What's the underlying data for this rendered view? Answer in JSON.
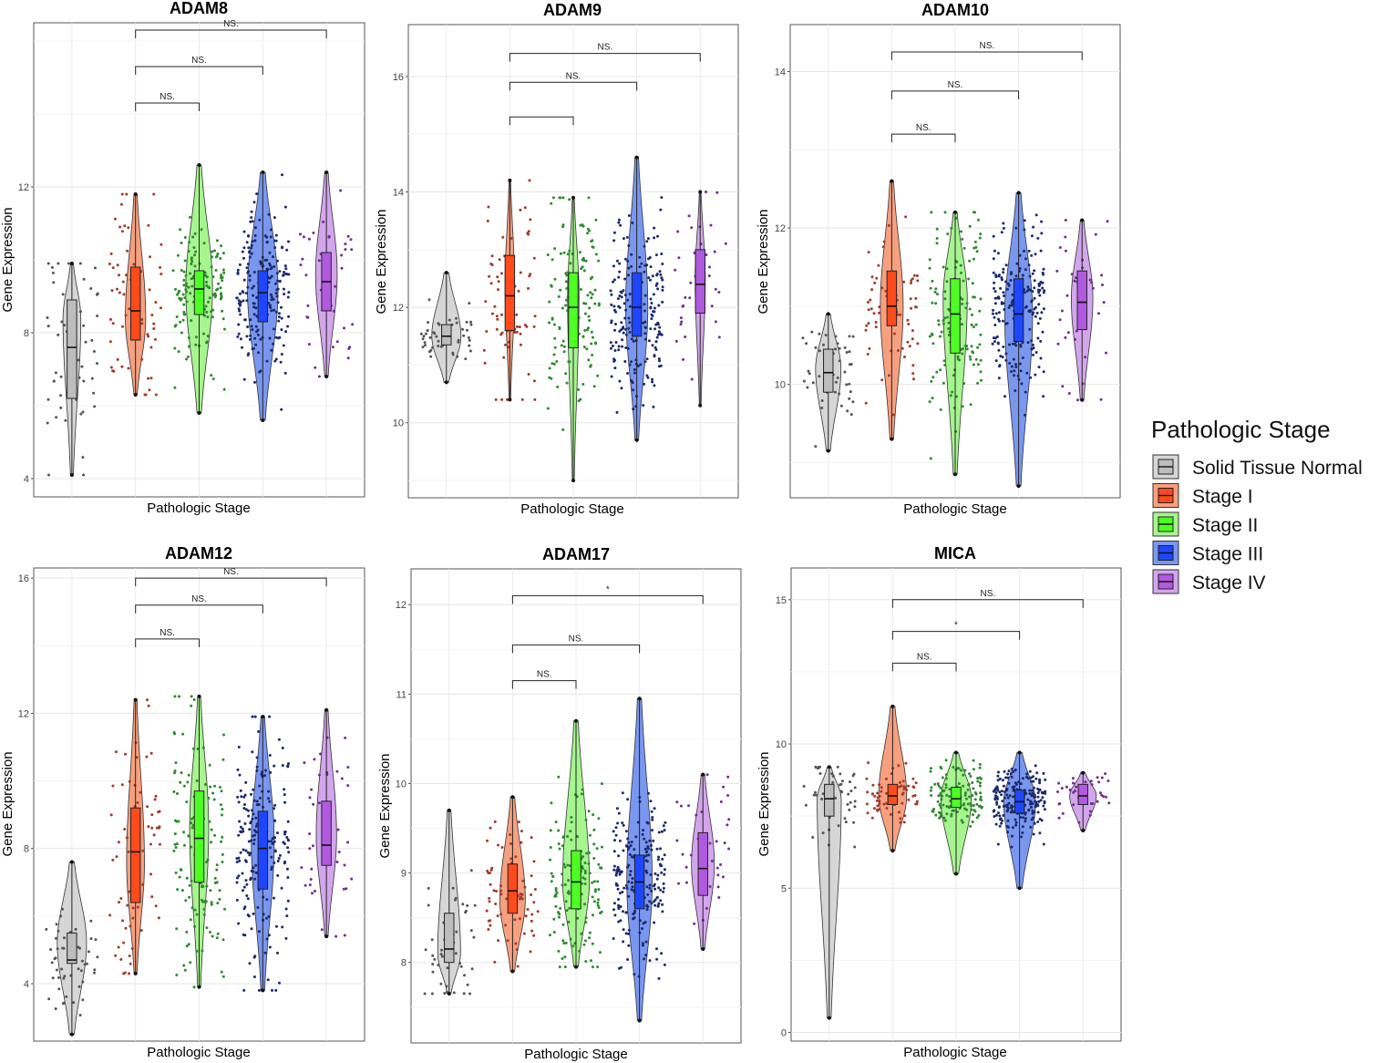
{
  "chart_data": [
    {
      "type": "violin",
      "title": "ADAM8",
      "xlabel": "Pathologic Stage",
      "ylabel": "Gene Expression",
      "ylim": [
        3.5,
        16.5
      ],
      "yticks": [
        4,
        8,
        12
      ],
      "categories": [
        "Solid Tissue Normal",
        "Stage I",
        "Stage II",
        "Stage III",
        "Stage IV"
      ],
      "groups": [
        {
          "min": 4.1,
          "q1": 6.2,
          "median": 7.6,
          "q3": 8.9,
          "max": 9.9,
          "mode": 8.4,
          "width": 0.28,
          "n": 50
        },
        {
          "min": 6.3,
          "q1": 7.8,
          "median": 8.6,
          "q3": 9.8,
          "max": 11.8,
          "mode": 8.4,
          "width": 0.32,
          "n": 70
        },
        {
          "min": 5.8,
          "q1": 8.5,
          "median": 9.2,
          "q3": 9.7,
          "max": 12.6,
          "mode": 9.2,
          "width": 0.42,
          "n": 140
        },
        {
          "min": 5.6,
          "q1": 8.3,
          "median": 9.1,
          "q3": 9.7,
          "max": 12.4,
          "mode": 9.2,
          "width": 0.48,
          "n": 210
        },
        {
          "min": 6.8,
          "q1": 8.6,
          "median": 9.4,
          "q3": 10.2,
          "max": 12.4,
          "mode": 9.6,
          "width": 0.34,
          "n": 40
        }
      ],
      "comparisons": [
        {
          "from": 1,
          "to": 2,
          "y": 14.3,
          "label": "NS."
        },
        {
          "from": 1,
          "to": 3,
          "y": 15.3,
          "label": "NS."
        },
        {
          "from": 1,
          "to": 4,
          "y": 16.3,
          "label": "NS."
        }
      ]
    },
    {
      "type": "violin",
      "title": "ADAM9",
      "xlabel": "Pathologic Stage",
      "ylabel": "Gene Expression",
      "ylim": [
        8.7,
        16.9
      ],
      "yticks": [
        10,
        12,
        14,
        16
      ],
      "categories": [
        "Solid Tissue Normal",
        "Stage I",
        "Stage II",
        "Stage III",
        "Stage IV"
      ],
      "groups": [
        {
          "min": 10.7,
          "q1": 11.35,
          "median": 11.5,
          "q3": 11.7,
          "max": 12.6,
          "mode": 11.5,
          "width": 0.46,
          "n": 50
        },
        {
          "min": 10.4,
          "q1": 11.6,
          "median": 12.2,
          "q3": 12.9,
          "max": 14.2,
          "mode": 12.4,
          "width": 0.15,
          "n": 70
        },
        {
          "min": 9.0,
          "q1": 11.3,
          "median": 12.0,
          "q3": 12.6,
          "max": 13.9,
          "mode": 12.2,
          "width": 0.18,
          "n": 140
        },
        {
          "min": 9.7,
          "q1": 11.5,
          "median": 12.0,
          "q3": 12.6,
          "max": 14.6,
          "mode": 12.0,
          "width": 0.35,
          "n": 210
        },
        {
          "min": 10.3,
          "q1": 11.9,
          "median": 12.4,
          "q3": 13.0,
          "max": 14.0,
          "mode": 12.5,
          "width": 0.16,
          "n": 40
        }
      ],
      "comparisons": [
        {
          "from": 1,
          "to": 2,
          "y": 15.3,
          "label": ""
        },
        {
          "from": 1,
          "to": 3,
          "y": 15.9,
          "label": "NS."
        },
        {
          "from": 1,
          "to": 4,
          "y": 16.4,
          "label": "NS."
        }
      ]
    },
    {
      "type": "violin",
      "title": "ADAM10",
      "xlabel": "Pathologic Stage",
      "ylabel": "Gene Expression",
      "ylim": [
        8.55,
        14.6
      ],
      "yticks": [
        10,
        12,
        14
      ],
      "categories": [
        "Solid Tissue Normal",
        "Stage I",
        "Stage II",
        "Stage III",
        "Stage IV"
      ],
      "groups": [
        {
          "min": 9.15,
          "q1": 9.9,
          "median": 10.15,
          "q3": 10.45,
          "max": 10.9,
          "mode": 10.2,
          "width": 0.4,
          "n": 50
        },
        {
          "min": 9.3,
          "q1": 10.75,
          "median": 11.0,
          "q3": 11.45,
          "max": 12.6,
          "mode": 11.0,
          "width": 0.36,
          "n": 70
        },
        {
          "min": 8.85,
          "q1": 10.4,
          "median": 10.9,
          "q3": 11.35,
          "max": 12.2,
          "mode": 11.1,
          "width": 0.38,
          "n": 140
        },
        {
          "min": 8.7,
          "q1": 10.55,
          "median": 10.9,
          "q3": 11.35,
          "max": 12.45,
          "mode": 10.9,
          "width": 0.44,
          "n": 210
        },
        {
          "min": 9.8,
          "q1": 10.7,
          "median": 11.05,
          "q3": 11.45,
          "max": 12.1,
          "mode": 11.1,
          "width": 0.34,
          "n": 40
        }
      ],
      "comparisons": [
        {
          "from": 1,
          "to": 2,
          "y": 13.2,
          "label": "NS."
        },
        {
          "from": 1,
          "to": 3,
          "y": 13.75,
          "label": "NS."
        },
        {
          "from": 1,
          "to": 4,
          "y": 14.25,
          "label": "NS."
        }
      ]
    },
    {
      "type": "violin",
      "title": "ADAM12",
      "xlabel": "Pathologic Stage",
      "ylabel": "Gene Expression",
      "ylim": [
        2.3,
        16.3
      ],
      "yticks": [
        4,
        8,
        12,
        16
      ],
      "categories": [
        "Solid Tissue Normal",
        "Stage I",
        "Stage II",
        "Stage III",
        "Stage IV"
      ],
      "groups": [
        {
          "min": 2.5,
          "q1": 4.6,
          "median": 4.7,
          "q3": 5.5,
          "max": 7.6,
          "mode": 5.2,
          "width": 0.46,
          "n": 50
        },
        {
          "min": 4.3,
          "q1": 6.4,
          "median": 7.9,
          "q3": 9.2,
          "max": 12.4,
          "mode": 7.6,
          "width": 0.28,
          "n": 70
        },
        {
          "min": 3.9,
          "q1": 7.0,
          "median": 8.3,
          "q3": 9.7,
          "max": 12.5,
          "mode": 8.6,
          "width": 0.3,
          "n": 140
        },
        {
          "min": 3.8,
          "q1": 6.8,
          "median": 8.0,
          "q3": 9.1,
          "max": 11.9,
          "mode": 8.2,
          "width": 0.36,
          "n": 210
        },
        {
          "min": 5.4,
          "q1": 7.5,
          "median": 8.1,
          "q3": 9.4,
          "max": 12.1,
          "mode": 8.4,
          "width": 0.32,
          "n": 40
        }
      ],
      "comparisons": [
        {
          "from": 1,
          "to": 2,
          "y": 14.2,
          "label": "NS."
        },
        {
          "from": 1,
          "to": 3,
          "y": 15.2,
          "label": "NS."
        },
        {
          "from": 1,
          "to": 4,
          "y": 16.0,
          "label": "NS."
        }
      ]
    },
    {
      "type": "violin",
      "title": "ADAM17",
      "xlabel": "Pathologic Stage",
      "ylabel": "Gene Expression",
      "ylim": [
        7.1,
        12.4
      ],
      "yticks": [
        8,
        9,
        10,
        11,
        12
      ],
      "categories": [
        "Solid Tissue Normal",
        "Stage I",
        "Stage II",
        "Stage III",
        "Stage IV"
      ],
      "groups": [
        {
          "min": 7.65,
          "q1": 8.0,
          "median": 8.15,
          "q3": 8.55,
          "max": 9.7,
          "mode": 8.1,
          "width": 0.36,
          "n": 50
        },
        {
          "min": 7.9,
          "q1": 8.55,
          "median": 8.8,
          "q3": 9.1,
          "max": 9.85,
          "mode": 8.7,
          "width": 0.4,
          "n": 70
        },
        {
          "min": 7.95,
          "q1": 8.6,
          "median": 8.9,
          "q3": 9.25,
          "max": 10.7,
          "mode": 8.9,
          "width": 0.42,
          "n": 140
        },
        {
          "min": 7.35,
          "q1": 8.6,
          "median": 8.9,
          "q3": 9.2,
          "max": 10.95,
          "mode": 8.9,
          "width": 0.4,
          "n": 210
        },
        {
          "min": 8.15,
          "q1": 8.75,
          "median": 9.05,
          "q3": 9.45,
          "max": 10.1,
          "mode": 9.1,
          "width": 0.36,
          "n": 40
        }
      ],
      "comparisons": [
        {
          "from": 1,
          "to": 2,
          "y": 11.15,
          "label": "NS."
        },
        {
          "from": 1,
          "to": 3,
          "y": 11.55,
          "label": "NS."
        },
        {
          "from": 1,
          "to": 4,
          "y": 12.1,
          "label": "*"
        }
      ]
    },
    {
      "type": "violin",
      "title": "MICA",
      "xlabel": "Pathologic Stage",
      "ylabel": "Gene Expression",
      "ylim": [
        -0.3,
        16.1
      ],
      "yticks": [
        0,
        5,
        10,
        15
      ],
      "categories": [
        "Solid Tissue Normal",
        "Stage I",
        "Stage II",
        "Stage III",
        "Stage IV"
      ],
      "groups": [
        {
          "min": 0.5,
          "q1": 7.5,
          "median": 8.1,
          "q3": 8.6,
          "max": 9.2,
          "mode": 8.1,
          "width": 0.38,
          "n": 50
        },
        {
          "min": 6.3,
          "q1": 7.9,
          "median": 8.2,
          "q3": 8.6,
          "max": 11.3,
          "mode": 8.2,
          "width": 0.44,
          "n": 70
        },
        {
          "min": 5.5,
          "q1": 7.8,
          "median": 8.1,
          "q3": 8.5,
          "max": 9.7,
          "mode": 8.1,
          "width": 0.48,
          "n": 140
        },
        {
          "min": 5.0,
          "q1": 7.6,
          "median": 8.0,
          "q3": 8.4,
          "max": 9.7,
          "mode": 8.0,
          "width": 0.5,
          "n": 210
        },
        {
          "min": 7.0,
          "q1": 7.9,
          "median": 8.2,
          "q3": 8.6,
          "max": 9.0,
          "mode": 8.2,
          "width": 0.42,
          "n": 40
        }
      ],
      "comparisons": [
        {
          "from": 1,
          "to": 2,
          "y": 12.8,
          "label": "NS."
        },
        {
          "from": 1,
          "to": 3,
          "y": 13.9,
          "label": "*"
        },
        {
          "from": 1,
          "to": 4,
          "y": 15.0,
          "label": "NS."
        }
      ]
    }
  ],
  "legend": {
    "title": "Pathologic Stage",
    "items": [
      {
        "label": "Solid Tissue Normal",
        "fill": "#d6d6d6",
        "box": "#bdbdbd",
        "point": "#555555"
      },
      {
        "label": "Stage I",
        "fill": "#f7a07f",
        "box": "#ff4a1c",
        "point": "#a33a2a"
      },
      {
        "label": "Stage II",
        "fill": "#a6f58f",
        "box": "#4dff23",
        "point": "#2e8a2e"
      },
      {
        "label": "Stage III",
        "fill": "#7a97f0",
        "box": "#1f46ff",
        "point": "#1b2a6e"
      },
      {
        "label": "Stage IV",
        "fill": "#d3a6ec",
        "box": "#b15ae0",
        "point": "#6f2f8f"
      }
    ]
  }
}
